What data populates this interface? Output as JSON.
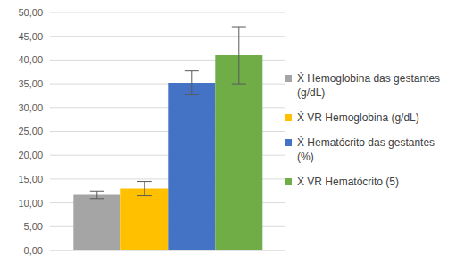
{
  "chart_data": {
    "type": "bar",
    "categories": [
      null
    ],
    "series": [
      {
        "name": "Ẋ Hemoglobina das gestantes (g/dL)",
        "color": "#a5a5a5",
        "values": [
          11.7
        ],
        "errors": [
          0.8
        ]
      },
      {
        "name": "Ẋ VR Hemoglobina (g/dL)",
        "color": "#ffc000",
        "values": [
          13.0
        ],
        "errors": [
          1.5
        ]
      },
      {
        "name": "Ẋ Hematócrito das gestantes (%)",
        "color": "#4472c4",
        "values": [
          35.2
        ],
        "errors": [
          2.5
        ]
      },
      {
        "name": "Ẋ VR Hematócrito (5)",
        "color": "#70ad47",
        "values": [
          41.0
        ],
        "errors": [
          6.0
        ]
      }
    ],
    "ylim": [
      0,
      50
    ],
    "yticks": [
      {
        "value": 0,
        "label": "0,00"
      },
      {
        "value": 5,
        "label": "5,00"
      },
      {
        "value": 10,
        "label": "10,00"
      },
      {
        "value": 15,
        "label": "15,00"
      },
      {
        "value": 20,
        "label": "20,00"
      },
      {
        "value": 25,
        "label": "25,00"
      },
      {
        "value": 30,
        "label": "30,00"
      },
      {
        "value": 35,
        "label": "35,00"
      },
      {
        "value": 40,
        "label": "40,00"
      },
      {
        "value": 45,
        "label": "45,00"
      },
      {
        "value": 50,
        "label": "50,00"
      }
    ],
    "grid": true,
    "legend": "right"
  }
}
